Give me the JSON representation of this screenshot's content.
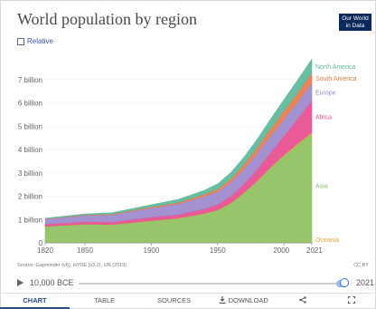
{
  "header": {
    "title": "World population by region",
    "logo_line1": "Our World",
    "logo_line2": "in Data",
    "relative_label": "Relative"
  },
  "footer": {
    "source": "Source: Gapminder (v6), HYDE (v3.2), UN (2019)",
    "license": "CC BY"
  },
  "timeline": {
    "start_label": "10,000 BCE",
    "end_label": "2021"
  },
  "tabs": [
    {
      "label": "CHART",
      "active": true
    },
    {
      "label": "TABLE",
      "active": false
    },
    {
      "label": "SOURCES",
      "active": false
    },
    {
      "label": "DOWNLOAD",
      "icon": "download-icon",
      "active": false
    },
    {
      "label": "",
      "icon": "share-icon",
      "active": false
    },
    {
      "label": "",
      "icon": "fullscreen-icon",
      "active": false
    }
  ],
  "chart_data": {
    "type": "area",
    "stacked": true,
    "title": "World population by region",
    "xlim": [
      1820,
      2021
    ],
    "ylim": [
      0,
      8000000000
    ],
    "x_ticks": [
      1820,
      1850,
      1900,
      1950,
      2000,
      2021
    ],
    "y_ticks": [
      {
        "value": 0,
        "label": "0"
      },
      {
        "value": 1000000000,
        "label": "1 billion"
      },
      {
        "value": 2000000000,
        "label": "2 billion"
      },
      {
        "value": 3000000000,
        "label": "3 billion"
      },
      {
        "value": 4000000000,
        "label": "4 billion"
      },
      {
        "value": 5000000000,
        "label": "5 billion"
      },
      {
        "value": 6000000000,
        "label": "6 billion"
      },
      {
        "value": 7000000000,
        "label": "7 billion"
      }
    ],
    "grid": "horizontal",
    "legend": "inline-right",
    "x": [
      1820,
      1850,
      1870,
      1900,
      1920,
      1940,
      1950,
      1960,
      1970,
      1980,
      1990,
      2000,
      2010,
      2021
    ],
    "series": [
      {
        "name": "Asia",
        "color": "#8fbf5e",
        "values": [
          710000000,
          800000000,
          780000000,
          950000000,
          1050000000,
          1250000000,
          1400000000,
          1700000000,
          2140000000,
          2650000000,
          3220000000,
          3740000000,
          4210000000,
          4690000000
        ]
      },
      {
        "name": "Oceania",
        "color": "#e8a33c",
        "values": [
          2000000,
          2000000,
          3000000,
          6000000,
          9000000,
          11000000,
          13000000,
          16000000,
          19000000,
          23000000,
          27000000,
          31000000,
          37000000,
          43000000
        ]
      },
      {
        "name": "Africa",
        "color": "#e84c8f",
        "values": [
          90000000,
          100000000,
          110000000,
          140000000,
          150000000,
          190000000,
          230000000,
          280000000,
          360000000,
          480000000,
          630000000,
          810000000,
          1040000000,
          1370000000
        ]
      },
      {
        "name": "Europe",
        "color": "#9b88cc",
        "values": [
          220000000,
          270000000,
          310000000,
          400000000,
          460000000,
          540000000,
          550000000,
          605000000,
          660000000,
          695000000,
          720000000,
          725000000,
          738000000,
          745000000
        ]
      },
      {
        "name": "South America",
        "color": "#e8784a",
        "values": [
          15000000,
          25000000,
          30000000,
          40000000,
          60000000,
          90000000,
          114000000,
          148000000,
          192000000,
          241000000,
          295000000,
          349000000,
          394000000,
          434000000
        ]
      },
      {
        "name": "North America",
        "color": "#5bb89a",
        "values": [
          20000000,
          40000000,
          55000000,
          100000000,
          130000000,
          170000000,
          225000000,
          270000000,
          314000000,
          370000000,
          425000000,
          490000000,
          542000000,
          595000000
        ]
      }
    ]
  }
}
